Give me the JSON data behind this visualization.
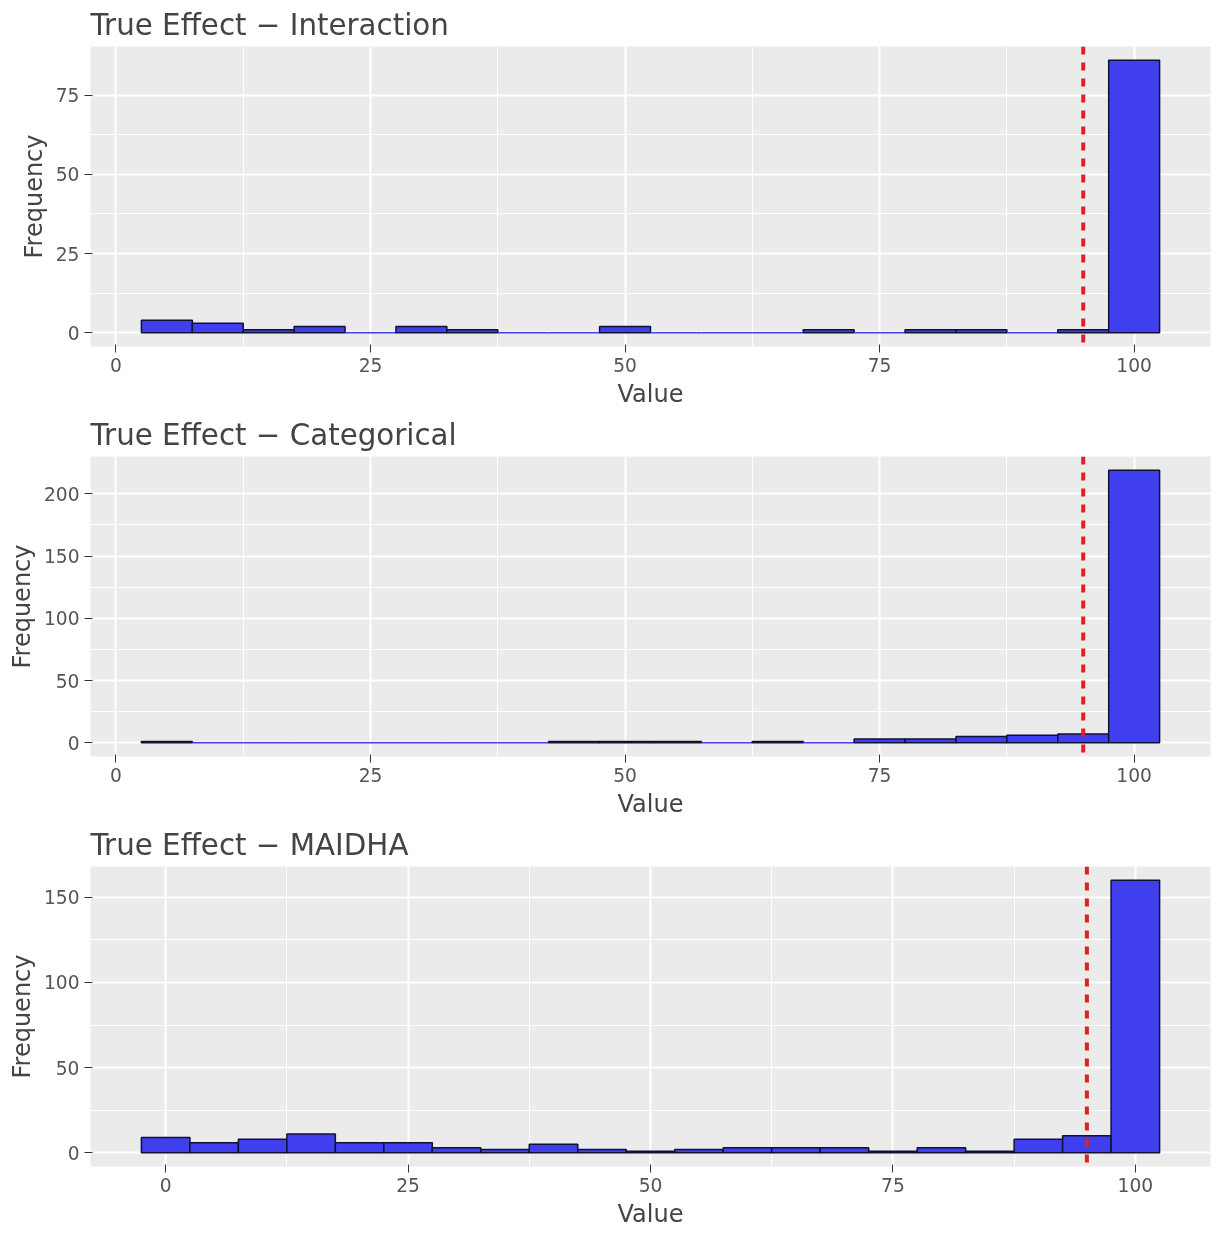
{
  "chart_data": [
    {
      "type": "histogram",
      "title": "True Effect − Interaction",
      "xlabel": "Value",
      "ylabel": "Frequency",
      "color": "#3f3ff0",
      "bins": [
        2.5,
        7.5,
        12.5,
        17.5,
        22.5,
        27.5,
        32.5,
        37.5,
        42.5,
        47.5,
        52.5,
        57.5,
        62.5,
        67.5,
        72.5,
        77.5,
        82.5,
        87.5,
        92.5,
        97.5,
        102.5
      ],
      "values": [
        4,
        3,
        1,
        2,
        0,
        2,
        1,
        0,
        0,
        2,
        0,
        0,
        0,
        1,
        0,
        1,
        1,
        0,
        1,
        86
      ],
      "xlim": [
        -2.5,
        107.5
      ],
      "xticks": [
        0,
        25,
        50,
        75,
        100
      ],
      "ylim": [
        -4.3,
        90.3
      ],
      "yticks": [
        0,
        25,
        50,
        75
      ],
      "grid": true,
      "ref_lines": [
        {
          "axis": "x",
          "value": 95,
          "color": "#dd2222",
          "line_style": "dashed"
        }
      ]
    },
    {
      "type": "histogram",
      "title": "True Effect − Categorical",
      "xlabel": "Value",
      "ylabel": "Frequency",
      "color": "#3f3ff0",
      "bins": [
        2.5,
        7.5,
        12.5,
        17.5,
        22.5,
        27.5,
        32.5,
        37.5,
        42.5,
        47.5,
        52.5,
        57.5,
        62.5,
        67.5,
        72.5,
        77.5,
        82.5,
        87.5,
        92.5,
        97.5,
        102.5
      ],
      "values": [
        1,
        0,
        0,
        0,
        0,
        0,
        0,
        0,
        1,
        1,
        1,
        0,
        1,
        0,
        3,
        3,
        5,
        6,
        7,
        219
      ],
      "xlim": [
        -2.5,
        107.5
      ],
      "xticks": [
        0,
        25,
        50,
        75,
        100
      ],
      "ylim": [
        -11,
        230
      ],
      "yticks": [
        0,
        50,
        100,
        150,
        200
      ],
      "grid": true,
      "ref_lines": [
        {
          "axis": "x",
          "value": 95,
          "color": "#dd2222",
          "line_style": "dashed"
        }
      ]
    },
    {
      "type": "histogram",
      "title": "True Effect − MAIDHA",
      "xlabel": "Value",
      "ylabel": "Frequency",
      "color": "#3f3ff0",
      "bins": [
        -2.5,
        2.5,
        7.5,
        12.5,
        17.5,
        22.5,
        27.5,
        32.5,
        37.5,
        42.5,
        47.5,
        52.5,
        57.5,
        62.5,
        67.5,
        72.5,
        77.5,
        82.5,
        87.5,
        92.5,
        97.5,
        102.5
      ],
      "values": [
        9,
        6,
        8,
        11,
        6,
        6,
        3,
        2,
        5,
        2,
        1,
        2,
        3,
        3,
        3,
        1,
        3,
        1,
        8,
        10,
        160
      ],
      "xlim": [
        -7.75,
        107.75
      ],
      "xticks": [
        0,
        25,
        50,
        75,
        100
      ],
      "ylim": [
        -8,
        168
      ],
      "yticks": [
        0,
        50,
        100,
        150
      ],
      "grid": true,
      "ref_lines": [
        {
          "axis": "x",
          "value": 95,
          "color": "#dd2222",
          "line_style": "dashed"
        }
      ]
    }
  ]
}
